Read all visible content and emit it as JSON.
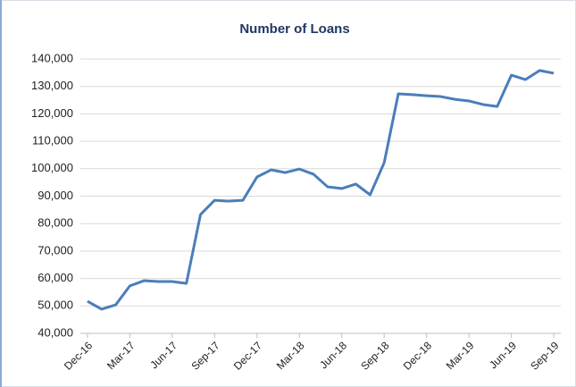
{
  "chart_data": {
    "type": "line",
    "title": "Number of Loans",
    "categories": [
      "Dec-16",
      null,
      null,
      "Mar-17",
      null,
      null,
      "Jun-17",
      null,
      null,
      "Sep-17",
      null,
      null,
      "Dec-17",
      null,
      null,
      "Mar-18",
      null,
      null,
      "Jun-18",
      null,
      null,
      "Sep-18",
      null,
      null,
      "Dec-18",
      null,
      null,
      "Mar-19",
      null,
      null,
      "Jun-19",
      null,
      null,
      "Sep-19"
    ],
    "series": [
      {
        "name": "Number of Loans",
        "color": "#4a7ebb",
        "values": [
          51700,
          48800,
          50400,
          57300,
          59200,
          58900,
          58900,
          58200,
          83300,
          88500,
          88200,
          88500,
          97000,
          99600,
          98600,
          99900,
          98000,
          93400,
          92800,
          94400,
          90500,
          102200,
          127300,
          127000,
          126600,
          126300,
          125300,
          124700,
          123400,
          122700,
          134100,
          132500,
          135800,
          134800
        ]
      }
    ],
    "ylim": [
      40000,
      140000
    ],
    "yticks": [
      {
        "value": 40000,
        "label": "40,000"
      },
      {
        "value": 50000,
        "label": "50,000"
      },
      {
        "value": 60000,
        "label": "60,000"
      },
      {
        "value": 70000,
        "label": "70,000"
      },
      {
        "value": 80000,
        "label": "80,000"
      },
      {
        "value": 90000,
        "label": "90,000"
      },
      {
        "value": 100000,
        "label": "100,000"
      },
      {
        "value": 110000,
        "label": "110,000"
      },
      {
        "value": 120000,
        "label": "120,000"
      },
      {
        "value": 130000,
        "label": "130,000"
      },
      {
        "value": 140000,
        "label": "140,000"
      }
    ],
    "grid": true
  }
}
